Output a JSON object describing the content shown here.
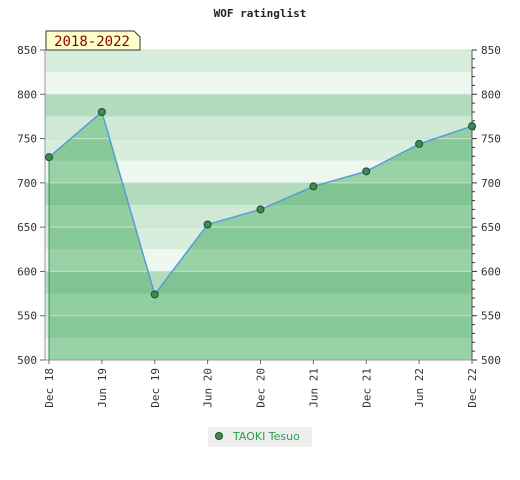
{
  "chart_data": {
    "type": "area",
    "title": "WOF ratinglist",
    "period_label": "2018-2022",
    "categories": [
      "Dec 18",
      "Jun 19",
      "Dec 19",
      "Jun 20",
      "Dec 20",
      "Jun 21",
      "Dec 21",
      "Jun 22",
      "Dec 22"
    ],
    "series": [
      {
        "name": "TAOKI Tesuo",
        "values": [
          729,
          780,
          574,
          653,
          670,
          696,
          713,
          744,
          764
        ]
      }
    ],
    "ylim": [
      500,
      850
    ],
    "yticks": [
      500,
      550,
      600,
      650,
      700,
      750,
      800,
      850
    ],
    "grid": true,
    "legend_position": "bottom",
    "colors": {
      "line": "#5b9bd5",
      "marker": "#3d8b55",
      "area": "#7cc58f",
      "legend_text": "#2e9e4a"
    }
  }
}
